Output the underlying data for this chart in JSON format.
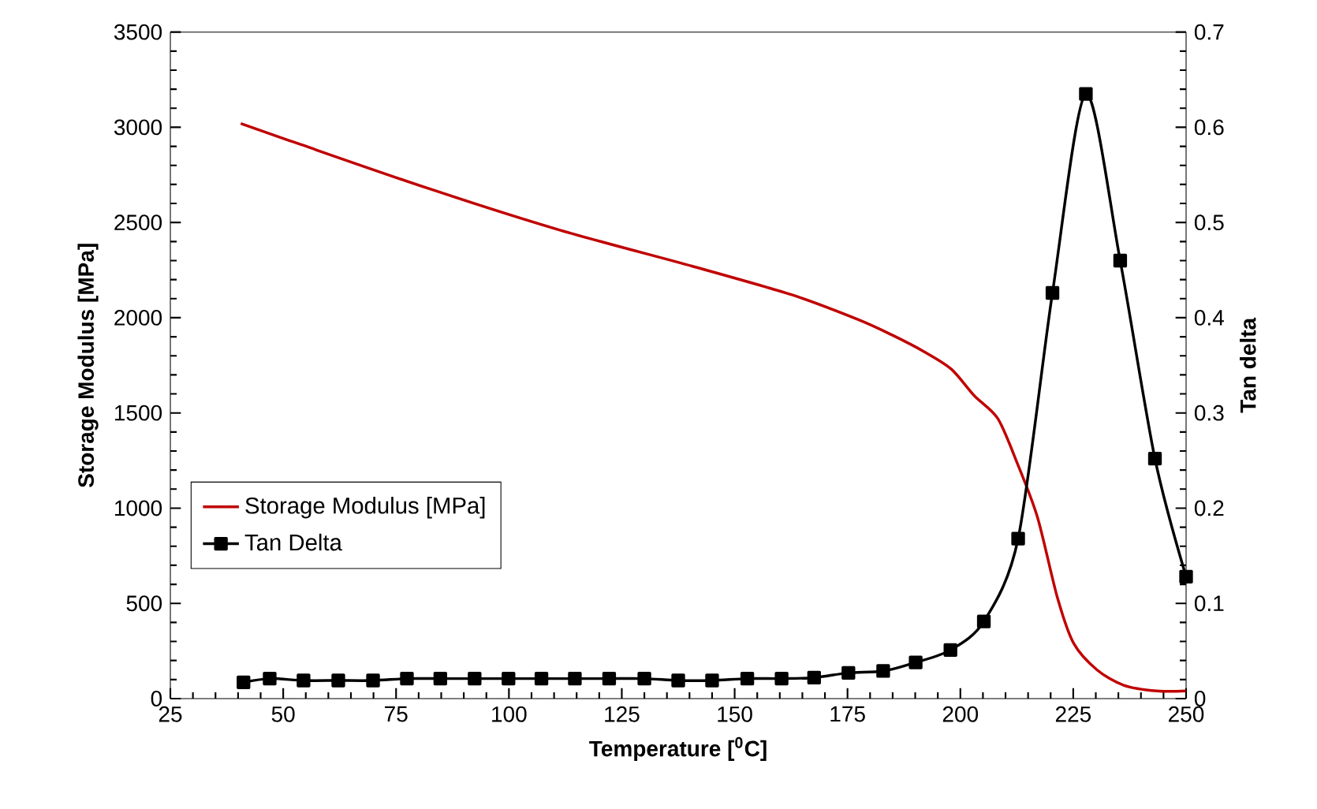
{
  "chart_data": {
    "type": "line",
    "xlabel": "Temperature [$^{0}$C]",
    "ylabel": "Storage Modulus [MPa]",
    "y2label": "Tan delta",
    "xlim": [
      25,
      250
    ],
    "xticks": [
      25,
      50,
      75,
      100,
      125,
      150,
      175,
      200,
      225,
      250
    ],
    "ylim": [
      0,
      3500
    ],
    "yticks": [
      0,
      500,
      1000,
      1500,
      2000,
      2500,
      3000,
      3500
    ],
    "y2lim": [
      0,
      0.7
    ],
    "y2ticks": [
      0,
      0.1,
      0.2,
      0.3,
      0.4,
      0.5,
      0.6,
      0.7
    ],
    "legend": "left",
    "grid": false,
    "series": [
      {
        "name": "Storage Modulus [MPa]",
        "color": "#c00000",
        "marker": "none",
        "x": [
          40.6,
          52.6,
          82.0,
          111.3,
          140.7,
          162.7,
          177.4,
          184.8,
          192.1,
          198.0,
          203.1,
          208.3,
          212.7,
          217.1,
          221.5,
          225.1,
          230.3,
          236.2,
          243.5,
          250
        ],
        "values": [
          3020,
          2920,
          2680,
          2460,
          2270,
          2120,
          1990,
          1910,
          1820,
          1730,
          1590,
          1470,
          1230,
          950,
          530,
          290,
          150,
          70,
          40,
          40
        ]
      },
      {
        "name": "Tan Delta",
        "color": "#000000",
        "marker": "square",
        "axis": "y2",
        "x": [
          41.2,
          47.0,
          54.5,
          62.2,
          69.9,
          77.4,
          84.8,
          92.4,
          99.9,
          107.2,
          114.6,
          122.2,
          130.0,
          137.5,
          145.0,
          152.8,
          160.4,
          167.6,
          175.2,
          182.9,
          190.1,
          197.8,
          205.2,
          212.8,
          220.4,
          227.8,
          235.4,
          243.1,
          250
        ],
        "values": [
          0.017,
          0.021,
          0.019,
          0.019,
          0.019,
          0.021,
          0.021,
          0.021,
          0.021,
          0.021,
          0.021,
          0.021,
          0.021,
          0.019,
          0.019,
          0.021,
          0.021,
          0.022,
          0.027,
          0.029,
          0.038,
          0.051,
          0.081,
          0.168,
          0.426,
          0.635,
          0.46,
          0.252,
          0.128
        ]
      }
    ]
  }
}
